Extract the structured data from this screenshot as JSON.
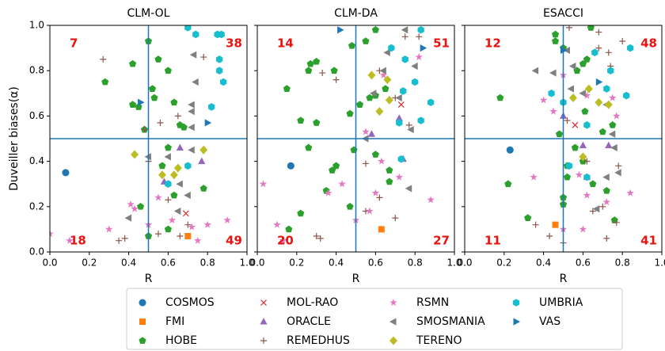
{
  "chart_data": [
    {
      "type": "scatter",
      "title": "CLM-OL",
      "x_label": "R",
      "y_label": "Duveiller biases(α)",
      "xlim": [
        0,
        1
      ],
      "ylim": [
        0,
        1
      ],
      "xticks": [
        {
          "value": 0,
          "label": "0.0"
        },
        {
          "value": 0.2,
          "label": "0.2"
        },
        {
          "value": 0.4,
          "label": "0.4"
        },
        {
          "value": 0.6,
          "label": "0.6"
        },
        {
          "value": 0.8,
          "label": "0.8"
        },
        {
          "value": 1,
          "label": "1.0"
        }
      ],
      "yticks": [
        {
          "value": 0,
          "label": "0.0"
        },
        {
          "value": 0.2,
          "label": "0.2"
        },
        {
          "value": 0.4,
          "label": "0.4"
        },
        {
          "value": 0.6,
          "label": "0.6"
        },
        {
          "value": 0.8,
          "label": "0.8"
        },
        {
          "value": 1,
          "label": "1.0"
        }
      ],
      "hline": 0.5,
      "vline": 0.5,
      "quadrant_counts": {
        "top_left": 7,
        "top_right": 38,
        "bottom_left": 18,
        "bottom_right": 49
      },
      "series": [
        {
          "name": "COSMOS",
          "color": "#1f77b4",
          "marker": "circle",
          "x": [
            0.08
          ],
          "y": [
            0.35
          ]
        },
        {
          "name": "FMI",
          "color": "#ff7f0e",
          "marker": "square",
          "x": [
            0.7
          ],
          "y": [
            0.07
          ]
        },
        {
          "name": "HOBE",
          "color": "#2ca02c",
          "marker": "pentagon",
          "x": [
            0.28,
            0.42,
            0.5,
            0.55,
            0.52,
            0.42,
            0.45,
            0.53,
            0.6,
            0.63,
            0.48,
            0.66,
            0.6,
            0.57,
            0.46,
            0.5,
            0.6,
            0.63,
            0.68,
            0.78
          ],
          "y": [
            0.75,
            0.83,
            0.93,
            0.85,
            0.72,
            0.65,
            0.64,
            0.68,
            0.8,
            0.66,
            0.54,
            0.56,
            0.46,
            0.38,
            0.2,
            0.07,
            0.1,
            0.25,
            0.55,
            0.28
          ]
        },
        {
          "name": "MOL-RAO",
          "color": "#d62728",
          "marker": "x",
          "x": [
            0.69
          ],
          "y": [
            0.17
          ]
        },
        {
          "name": "ORACLE",
          "color": "#9467bd",
          "marker": "triangle-up",
          "x": [
            0.66,
            0.58,
            0.77
          ],
          "y": [
            0.46,
            0.31,
            0.4
          ]
        },
        {
          "name": "REMEDHUS",
          "color": "#8c564b",
          "marker": "plus",
          "x": [
            0.27,
            0.48,
            0.56,
            0.6,
            0.35,
            0.38,
            0.5,
            0.65,
            0.78,
            0.7,
            0.66,
            0.55
          ],
          "y": [
            0.85,
            0.54,
            0.57,
            0.23,
            0.05,
            0.06,
            0.4,
            0.6,
            0.86,
            0.12,
            0.07,
            0.08
          ]
        },
        {
          "name": "RSMN",
          "color": "#e377c2",
          "marker": "star",
          "x": [
            0.0,
            0.1,
            0.3,
            0.41,
            0.43,
            0.5,
            0.55,
            0.62,
            0.72,
            0.8,
            0.9,
            0.75
          ],
          "y": [
            0.08,
            0.05,
            0.1,
            0.21,
            0.19,
            0.12,
            0.24,
            0.14,
            0.11,
            0.12,
            0.14,
            0.05
          ]
        },
        {
          "name": "SMOSMANIA",
          "color": "#7f7f7f",
          "marker": "triangle-left",
          "x": [
            0.4,
            0.5,
            0.6,
            0.66,
            0.72,
            0.73,
            0.74,
            0.72,
            0.72,
            0.72,
            0.65,
            0.7
          ],
          "y": [
            0.15,
            0.42,
            0.42,
            0.3,
            0.45,
            0.87,
            0.75,
            0.65,
            0.55,
            0.62,
            0.18,
            0.25
          ]
        },
        {
          "name": "TERENO",
          "color": "#bcbd22",
          "marker": "diamond",
          "x": [
            0.43,
            0.57,
            0.63,
            0.65,
            0.78
          ],
          "y": [
            0.43,
            0.34,
            0.34,
            0.37,
            0.45
          ]
        },
        {
          "name": "UMBRIA",
          "color": "#17becf",
          "marker": "hexagon",
          "x": [
            0.7,
            0.74,
            0.85,
            0.87,
            0.86,
            0.86,
            0.82,
            0.88,
            0.7,
            0.6
          ],
          "y": [
            0.99,
            0.96,
            0.96,
            0.96,
            0.85,
            0.8,
            0.64,
            0.75,
            0.38,
            0.3
          ]
        },
        {
          "name": "VAS",
          "color": "#1f77b4",
          "marker": "triangle-right",
          "x": [
            0.46,
            0.8
          ],
          "y": [
            0.66,
            0.57
          ]
        }
      ]
    },
    {
      "type": "scatter",
      "title": "CLM-DA",
      "x_label": "R",
      "xlim": [
        0,
        1
      ],
      "ylim": [
        0,
        1
      ],
      "xticks": [
        {
          "value": 0,
          "label": "0.0"
        },
        {
          "value": 0.2,
          "label": "0.2"
        },
        {
          "value": 0.4,
          "label": "0.4"
        },
        {
          "value": 0.6,
          "label": "0.6"
        },
        {
          "value": 0.8,
          "label": "0.8"
        },
        {
          "value": 1,
          "label": "1.0"
        }
      ],
      "hline": 0.5,
      "vline": 0.5,
      "quadrant_counts": {
        "top_left": 14,
        "top_right": 51,
        "bottom_left": 20,
        "bottom_right": 27
      },
      "series": [
        {
          "name": "COSMOS",
          "color": "#1f77b4",
          "marker": "circle",
          "x": [
            0.17
          ],
          "y": [
            0.38
          ]
        },
        {
          "name": "FMI",
          "color": "#ff7f0e",
          "marker": "square",
          "x": [
            0.63
          ],
          "y": [
            0.1
          ]
        },
        {
          "name": "HOBE",
          "color": "#2ca02c",
          "marker": "pentagon",
          "x": [
            0.27,
            0.26,
            0.3,
            0.39,
            0.15,
            0.48,
            0.55,
            0.6,
            0.22,
            0.3,
            0.47,
            0.52,
            0.57,
            0.6,
            0.65,
            0.26,
            0.49,
            0.6,
            0.38,
            0.4,
            0.22,
            0.16,
            0.47,
            0.35,
            0.67,
            0.67
          ],
          "y": [
            0.83,
            0.8,
            0.84,
            0.8,
            0.72,
            0.91,
            0.93,
            0.98,
            0.58,
            0.57,
            0.61,
            0.65,
            0.68,
            0.69,
            0.72,
            0.46,
            0.45,
            0.43,
            0.36,
            0.38,
            0.17,
            0.1,
            0.2,
            0.27,
            0.31,
            0.36
          ]
        },
        {
          "name": "MOL-RAO",
          "color": "#d62728",
          "marker": "x",
          "x": [
            0.73
          ],
          "y": [
            0.65
          ]
        },
        {
          "name": "ORACLE",
          "color": "#9467bd",
          "marker": "triangle-up",
          "x": [
            0.58,
            0.72,
            0.74
          ],
          "y": [
            0.52,
            0.59,
            0.41
          ]
        },
        {
          "name": "REMEDHUS",
          "color": "#8c564b",
          "marker": "plus",
          "x": [
            0.33,
            0.4,
            0.62,
            0.75,
            0.82,
            0.7,
            0.55,
            0.3,
            0.32,
            0.55,
            0.62,
            0.7,
            0.77
          ],
          "y": [
            0.79,
            0.76,
            0.8,
            0.95,
            0.95,
            0.68,
            0.39,
            0.07,
            0.06,
            0.18,
            0.24,
            0.15,
            0.56
          ]
        },
        {
          "name": "RSMN",
          "color": "#e377c2",
          "marker": "star",
          "x": [
            0.03,
            0.1,
            0.13,
            0.36,
            0.43,
            0.5,
            0.57,
            0.6,
            0.63,
            0.72,
            0.88,
            0.82,
            0.55,
            0.64
          ],
          "y": [
            0.3,
            0.12,
            0.05,
            0.26,
            0.3,
            0.14,
            0.18,
            0.26,
            0.4,
            0.33,
            0.23,
            0.86,
            0.53,
            0.78
          ]
        },
        {
          "name": "SMOSMANIA",
          "color": "#7f7f7f",
          "marker": "triangle-left",
          "x": [
            0.59,
            0.72,
            0.78,
            0.55,
            0.64,
            0.75,
            0.77,
            0.66,
            0.8
          ],
          "y": [
            0.7,
            0.68,
            0.54,
            0.5,
            0.8,
            0.98,
            0.28,
            0.88,
            0.82
          ]
        },
        {
          "name": "TERENO",
          "color": "#bcbd22",
          "marker": "diamond",
          "x": [
            0.58,
            0.66,
            0.67,
            0.62
          ],
          "y": [
            0.78,
            0.76,
            0.67,
            0.62
          ]
        },
        {
          "name": "UMBRIA",
          "color": "#17becf",
          "marker": "hexagon",
          "x": [
            0.68,
            0.75,
            0.8,
            0.83,
            0.88,
            0.74,
            0.83,
            0.72,
            0.73
          ],
          "y": [
            0.9,
            0.85,
            0.75,
            0.98,
            0.66,
            0.71,
            0.58,
            0.57,
            0.41
          ]
        },
        {
          "name": "VAS",
          "color": "#1f77b4",
          "marker": "triangle-right",
          "x": [
            0.42,
            0.84
          ],
          "y": [
            0.98,
            0.9
          ]
        }
      ]
    },
    {
      "type": "scatter",
      "title": "ESACCI",
      "x_label": "R",
      "xlim": [
        0,
        1
      ],
      "ylim": [
        0,
        1
      ],
      "xticks": [
        {
          "value": 0,
          "label": "0.0"
        },
        {
          "value": 0.2,
          "label": "0.2"
        },
        {
          "value": 0.4,
          "label": "0.4"
        },
        {
          "value": 0.6,
          "label": "0.6"
        },
        {
          "value": 0.8,
          "label": "0.8"
        },
        {
          "value": 1,
          "label": "1.0"
        }
      ],
      "hline": 0.5,
      "vline": 0.5,
      "quadrant_counts": {
        "top_left": 12,
        "top_right": 48,
        "bottom_left": 11,
        "bottom_right": 41
      },
      "series": [
        {
          "name": "COSMOS",
          "color": "#1f77b4",
          "marker": "circle",
          "x": [
            0.23
          ],
          "y": [
            0.45
          ]
        },
        {
          "name": "FMI",
          "color": "#ff7f0e",
          "marker": "square",
          "x": [
            0.46
          ],
          "y": [
            0.12
          ]
        },
        {
          "name": "HOBE",
          "color": "#2ca02c",
          "marker": "pentagon",
          "x": [
            0.46,
            0.46,
            0.62,
            0.6,
            0.64,
            0.57,
            0.5,
            0.18,
            0.61,
            0.75,
            0.7,
            0.48,
            0.56,
            0.6,
            0.52,
            0.22,
            0.32,
            0.5,
            0.5,
            0.65,
            0.72,
            0.76,
            0.52
          ],
          "y": [
            0.96,
            0.93,
            0.85,
            0.83,
            0.99,
            0.8,
            0.9,
            0.68,
            0.62,
            0.56,
            0.53,
            0.52,
            0.46,
            0.4,
            0.33,
            0.3,
            0.15,
            0.21,
            0.24,
            0.3,
            0.27,
            0.14,
            0.38
          ]
        },
        {
          "name": "MOL-RAO",
          "color": "#d62728",
          "marker": "x",
          "x": [
            0.56
          ],
          "y": [
            0.56
          ]
        },
        {
          "name": "ORACLE",
          "color": "#9467bd",
          "marker": "triangle-up",
          "x": [
            0.5,
            0.6,
            0.62,
            0.73
          ],
          "y": [
            0.6,
            0.47,
            0.33,
            0.47
          ]
        },
        {
          "name": "REMEDHUS",
          "color": "#8c564b",
          "marker": "plus",
          "x": [
            0.53,
            0.68,
            0.68,
            0.8,
            0.73,
            0.74,
            0.52,
            0.43,
            0.5,
            0.62,
            0.7,
            0.77,
            0.65,
            0.72,
            0.78,
            0.36
          ],
          "y": [
            0.99,
            0.97,
            0.9,
            0.93,
            0.88,
            0.82,
            0.58,
            0.07,
            0.04,
            0.4,
            0.2,
            0.13,
            0.18,
            0.06,
            0.38,
            0.12
          ]
        },
        {
          "name": "RSMN",
          "color": "#e377c2",
          "marker": "star",
          "x": [
            0.4,
            0.45,
            0.62,
            0.75,
            0.5,
            0.35,
            0.58,
            0.62,
            0.72,
            0.84,
            0.77,
            0.6,
            0.5
          ],
          "y": [
            0.67,
            0.62,
            0.69,
            0.68,
            0.78,
            0.33,
            0.34,
            0.25,
            0.22,
            0.26,
            0.6,
            0.1,
            0.1
          ]
        },
        {
          "name": "SMOSMANIA",
          "color": "#7f7f7f",
          "marker": "triangle-left",
          "x": [
            0.36,
            0.45,
            0.54,
            0.6,
            0.72,
            0.75,
            0.76,
            0.72,
            0.78,
            0.67,
            0.55,
            0.52
          ],
          "y": [
            0.8,
            0.79,
            0.72,
            0.7,
            0.65,
            0.52,
            0.46,
            0.33,
            0.35,
            0.19,
            0.82,
            0.89
          ]
        },
        {
          "name": "TERENO",
          "color": "#bcbd22",
          "marker": "diamond",
          "x": [
            0.55,
            0.63,
            0.73,
            0.6,
            0.68
          ],
          "y": [
            0.68,
            0.72,
            0.65,
            0.42,
            0.66
          ]
        },
        {
          "name": "UMBRIA",
          "color": "#17becf",
          "marker": "hexagon",
          "x": [
            0.44,
            0.5,
            0.62,
            0.72,
            0.74,
            0.66,
            0.82,
            0.84,
            0.62,
            0.53
          ],
          "y": [
            0.7,
            0.66,
            0.56,
            0.72,
            0.8,
            0.88,
            0.69,
            0.9,
            0.33,
            0.38
          ]
        },
        {
          "name": "VAS",
          "color": "#1f77b4",
          "marker": "triangle-right",
          "x": [
            0.5,
            0.68
          ],
          "y": [
            0.89,
            0.75
          ]
        }
      ]
    }
  ]
}
